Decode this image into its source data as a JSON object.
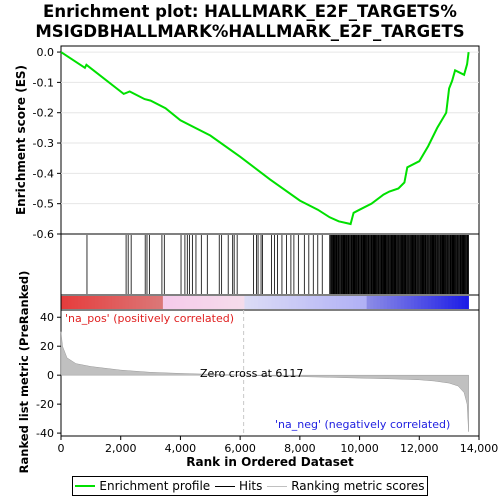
{
  "title_line1": "Enrichment plot: HALLMARK_E2F_TARGETS%",
  "title_line2": "MSIGDBHALLMARK%HALLMARK_E2F_TARGETS",
  "colors": {
    "enrichment": "#00e000",
    "hits": "#000000",
    "ranking": "#c0c0c0",
    "pos_label": "#e02020",
    "neg_label": "#2020e0"
  },
  "chart_data": [
    {
      "type": "line",
      "ylabel": "Enrichment score (ES)",
      "ylim": [
        -0.6,
        0.02
      ],
      "yticks": [
        "0.0",
        "-0.1",
        "-0.2",
        "-0.3",
        "-0.4",
        "-0.5",
        "-0.6"
      ],
      "ytick_values": [
        0.0,
        -0.1,
        -0.2,
        -0.3,
        -0.4,
        -0.5,
        -0.6
      ],
      "xlim": [
        0,
        14000
      ],
      "series": [
        {
          "name": "Enrichment profile",
          "x": [
            0,
            800,
            850,
            2100,
            2300,
            2800,
            3000,
            3500,
            4000,
            5000,
            6000,
            7000,
            8000,
            8600,
            9000,
            9300,
            9700,
            9800,
            10000,
            10400,
            10800,
            11000,
            11300,
            11500,
            11600,
            12000,
            12300,
            12600,
            12900,
            13000,
            13100,
            13200,
            13500,
            13600,
            13650
          ],
          "y": [
            0.0,
            -0.052,
            -0.042,
            -0.138,
            -0.13,
            -0.155,
            -0.16,
            -0.185,
            -0.225,
            -0.275,
            -0.345,
            -0.42,
            -0.49,
            -0.52,
            -0.545,
            -0.558,
            -0.567,
            -0.53,
            -0.52,
            -0.5,
            -0.47,
            -0.46,
            -0.45,
            -0.43,
            -0.38,
            -0.36,
            -0.31,
            -0.25,
            -0.2,
            -0.12,
            -0.095,
            -0.06,
            -0.075,
            -0.04,
            0.0
          ]
        }
      ]
    },
    {
      "type": "line",
      "ylabel": "Ranked list metric (PreRanked)",
      "xlabel": "Rank in Ordered Dataset",
      "xlim": [
        0,
        14000
      ],
      "ylim": [
        -42,
        45
      ],
      "xticks": [
        "0",
        "2,000",
        "4,000",
        "6,000",
        "8,000",
        "10,000",
        "12,000",
        "14,000"
      ],
      "xtick_values": [
        0,
        2000,
        4000,
        6000,
        8000,
        10000,
        12000,
        14000
      ],
      "yticks": [
        "40",
        "20",
        "0",
        "-20",
        "-40"
      ],
      "ytick_values": [
        40,
        20,
        0,
        -20,
        -40
      ],
      "zero_cross": 6117,
      "series": [
        {
          "name": "Ranking metric scores",
          "x": [
            0,
            50,
            200,
            500,
            1000,
            2000,
            3000,
            4000,
            5000,
            6117,
            7000,
            8000,
            9000,
            10000,
            11000,
            12000,
            12500,
            13000,
            13300,
            13500,
            13600,
            13650
          ],
          "y": [
            30,
            20,
            12,
            8,
            6,
            3.5,
            2,
            1.2,
            0.6,
            0,
            -0.5,
            -1,
            -1.5,
            -2,
            -2.5,
            -3.2,
            -4,
            -5.5,
            -7.5,
            -12,
            -20,
            -39
          ]
        }
      ],
      "annotations": {
        "pos": "'na_pos' (positively correlated)",
        "zero": "Zero cross at 6117",
        "neg": "'na_neg' (negatively correlated)"
      }
    }
  ],
  "hits": {
    "sparse": [
      870,
      2180,
      2250,
      2350,
      2820,
      2880,
      2960,
      3380,
      3460,
      4020,
      4150,
      4230,
      4300,
      4400,
      4520,
      4700,
      4900,
      5300,
      5380,
      5600,
      5750,
      5800,
      5900,
      6450,
      6550,
      6600,
      6700,
      6750,
      7050,
      7150,
      7250,
      7400,
      7550,
      7700,
      7800,
      7950,
      8150,
      8300,
      8450,
      8600,
      8750
    ],
    "dense_start": 9000,
    "dense_end": 13650,
    "dense_count": 210
  },
  "legend": {
    "enrichment": "Enrichment profile",
    "hits": "Hits",
    "ranking": "Ranking metric scores"
  }
}
